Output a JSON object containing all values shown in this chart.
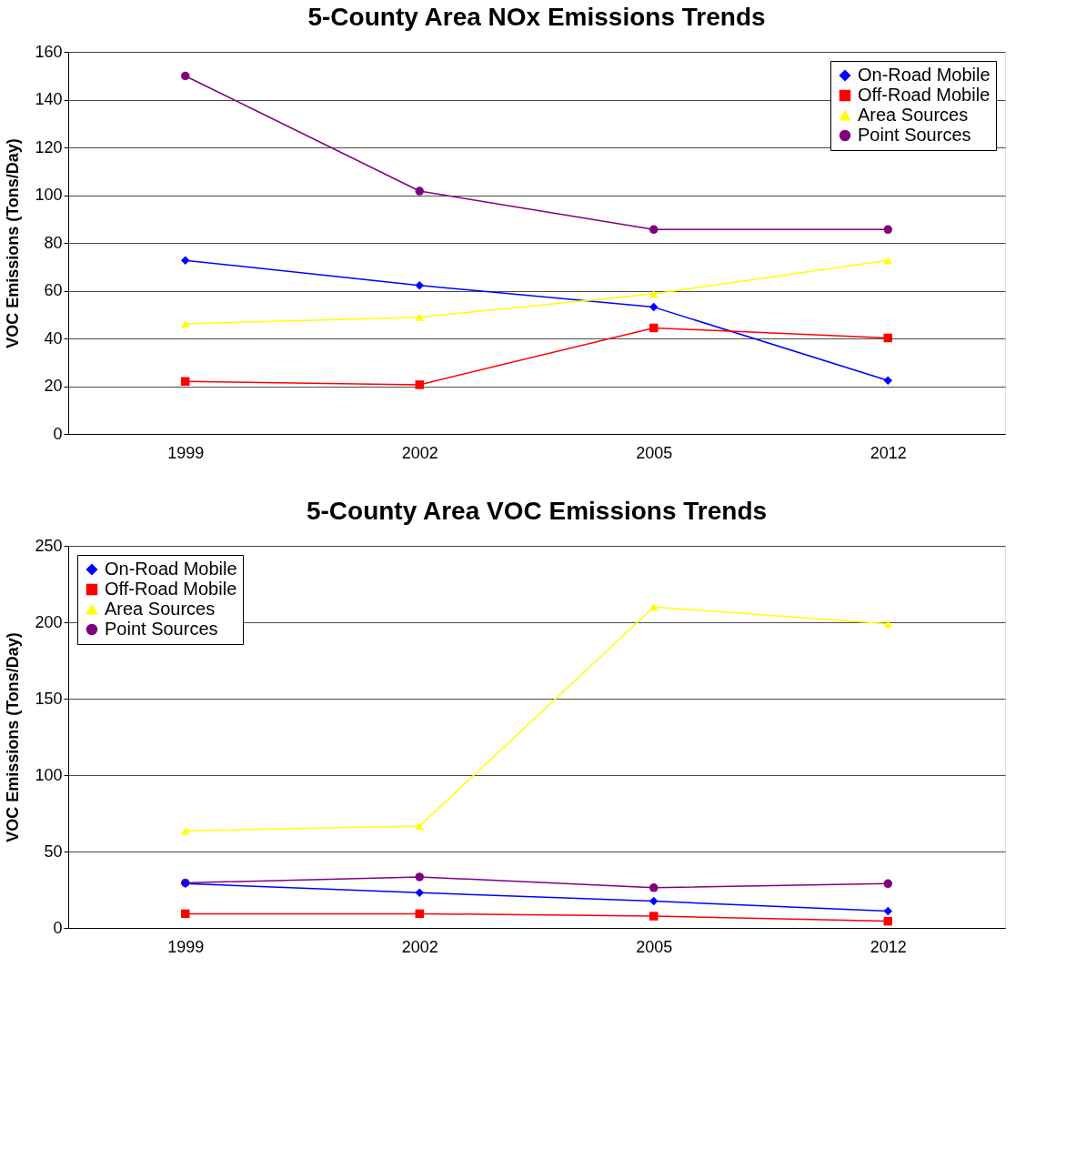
{
  "chart_data": [
    {
      "type": "line",
      "title": "5-County Area NOx Emissions Trends",
      "ylabel": "VOC Emissions (Tons/Day)",
      "categories": [
        "1999",
        "2002",
        "2005",
        "2012"
      ],
      "ylim": [
        0,
        160
      ],
      "yticks": [
        0,
        20,
        40,
        60,
        80,
        100,
        120,
        140,
        160
      ],
      "grid": "y",
      "legend": "top right",
      "series": [
        {
          "name": "On-Road Mobile",
          "color": "#0000ff",
          "marker": "diamond",
          "values": [
            72.7,
            62.2,
            53.1,
            22.4
          ]
        },
        {
          "name": "Off-Road Mobile",
          "color": "#ff0000",
          "marker": "square",
          "values": [
            22.0,
            20.6,
            44.4,
            40.2
          ]
        },
        {
          "name": "Area Sources",
          "color": "#ffff00",
          "marker": "triangle",
          "values": [
            46.1,
            48.9,
            58.7,
            72.7
          ]
        },
        {
          "name": "Point Sources",
          "color": "#800080",
          "marker": "circle",
          "values": [
            149.9,
            101.7,
            85.6,
            85.6
          ]
        }
      ]
    },
    {
      "type": "line",
      "title": "5-County Area VOC Emissions Trends",
      "ylabel": "VOC Emissions (Tons/Day)",
      "categories": [
        "1999",
        "2002",
        "2005",
        "2012"
      ],
      "ylim": [
        0,
        250
      ],
      "yticks": [
        0,
        50,
        100,
        150,
        200,
        250
      ],
      "grid": "y",
      "legend": "top left",
      "series": [
        {
          "name": "On-Road Mobile",
          "color": "#0000ff",
          "marker": "diamond",
          "values": [
            29,
            23,
            17.5,
            11
          ]
        },
        {
          "name": "Off-Road Mobile",
          "color": "#ff0000",
          "marker": "square",
          "values": [
            9.3,
            9.3,
            7.7,
            4.4
          ]
        },
        {
          "name": "Area Sources",
          "color": "#ffff00",
          "marker": "triangle",
          "values": [
            63.5,
            66.7,
            210,
            199
          ]
        },
        {
          "name": "Point Sources",
          "color": "#800080",
          "marker": "circle",
          "values": [
            29.5,
            33.4,
            26.3,
            29
          ]
        }
      ]
    }
  ]
}
